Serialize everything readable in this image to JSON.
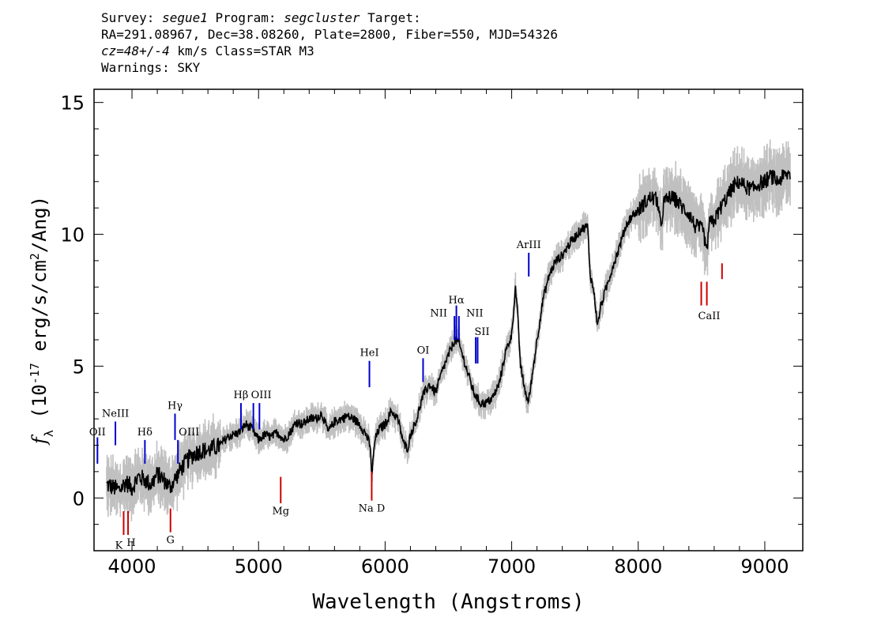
{
  "header": {
    "line1_a": "Survey: ",
    "survey": "segue1",
    "line1_b": " Program: ",
    "program": "segcluster",
    "line1_c": " Target:",
    "line2": "RA=291.08967, Dec=38.08260, Plate=2800, Fiber=550, MJD=54326",
    "cz": "cz=48+/-4",
    "line3_b": " km/s Class=STAR M3",
    "line4": "Warnings: SKY"
  },
  "chart_data": {
    "type": "line",
    "xlabel": "Wavelength (Angstroms)",
    "ylabel": "f_λ (10^-17 erg/s/cm^2/Ang)",
    "xlim": [
      3700,
      9300
    ],
    "ylim": [
      -2,
      15.5
    ],
    "x_ticks": [
      4000,
      5000,
      6000,
      7000,
      8000,
      9000
    ],
    "y_ticks": [
      0,
      5,
      10,
      15
    ],
    "flux_color": "#000000",
    "error_color": "#c0c0c0",
    "emission_color": "#0000cc",
    "absorption_color": "#cc0000",
    "flux": {
      "x": [
        3800,
        3850,
        3900,
        3950,
        4000,
        4050,
        4100,
        4150,
        4200,
        4250,
        4300,
        4350,
        4400,
        4450,
        4500,
        4550,
        4600,
        4650,
        4700,
        4750,
        4800,
        4850,
        4900,
        4950,
        5000,
        5050,
        5100,
        5150,
        5200,
        5250,
        5300,
        5350,
        5400,
        5450,
        5500,
        5550,
        5600,
        5650,
        5700,
        5750,
        5800,
        5850,
        5880,
        5895,
        5920,
        5950,
        6000,
        6050,
        6100,
        6150,
        6180,
        6200,
        6250,
        6300,
        6350,
        6400,
        6450,
        6500,
        6550,
        6580,
        6600,
        6650,
        6700,
        6750,
        6800,
        6850,
        6900,
        6950,
        7000,
        7030,
        7050,
        7070,
        7100,
        7130,
        7150,
        7200,
        7250,
        7300,
        7350,
        7400,
        7450,
        7500,
        7550,
        7600,
        7620,
        7650,
        7680,
        7700,
        7750,
        7800,
        7850,
        7900,
        7950,
        8000,
        8050,
        8100,
        8150,
        8180,
        8200,
        8250,
        8300,
        8350,
        8400,
        8450,
        8500,
        8520,
        8540,
        8560,
        8600,
        8650,
        8700,
        8750,
        8800,
        8850,
        8900,
        8950,
        9000,
        9050,
        9100,
        9150,
        9200
      ],
      "y": [
        0.5,
        0.4,
        0.3,
        0.6,
        0.4,
        0.8,
        0.7,
        0.5,
        0.9,
        0.7,
        0.4,
        0.8,
        1.2,
        1.5,
        1.7,
        1.8,
        1.8,
        1.9,
        2.0,
        2.3,
        2.4,
        2.5,
        2.8,
        2.6,
        2.2,
        2.4,
        2.3,
        2.5,
        2.2,
        2.5,
        2.9,
        2.8,
        3.0,
        3.0,
        3.2,
        2.5,
        2.9,
        3.0,
        3.1,
        3.0,
        2.8,
        2.4,
        2.0,
        0.9,
        2.2,
        2.6,
        2.8,
        3.3,
        3.0,
        2.0,
        1.9,
        2.4,
        3.0,
        3.9,
        4.3,
        4.0,
        4.8,
        5.4,
        6.0,
        5.9,
        5.6,
        4.8,
        4.0,
        3.6,
        3.6,
        3.8,
        4.3,
        5.5,
        6.2,
        8.0,
        6.7,
        5.0,
        4.2,
        3.6,
        4.2,
        6.0,
        7.6,
        8.5,
        9.0,
        9.2,
        9.6,
        9.9,
        10.2,
        10.3,
        8.5,
        7.8,
        6.5,
        7.2,
        8.0,
        8.8,
        9.5,
        10.3,
        10.7,
        10.9,
        11.2,
        11.4,
        11.3,
        10.2,
        11.2,
        11.4,
        11.3,
        11.0,
        10.8,
        10.3,
        10.2,
        10.0,
        9.2,
        10.4,
        10.5,
        11.0,
        11.4,
        11.8,
        12.0,
        11.8,
        11.7,
        11.9,
        12.0,
        12.2,
        12.0,
        12.2,
        12.3
      ]
    },
    "lines": [
      {
        "label": "OII",
        "x": 3727,
        "kind": "emission",
        "y0": 1.3,
        "y1": 2.3,
        "ty": 2.5
      },
      {
        "label": "NeIII",
        "x": 3869,
        "kind": "emission",
        "y0": 2.0,
        "y1": 2.9,
        "ty": 3.2
      },
      {
        "label": "Hδ",
        "x": 4102,
        "kind": "emission",
        "y0": 1.3,
        "y1": 2.2,
        "ty": 2.5
      },
      {
        "label": "Hγ",
        "x": 4340,
        "kind": "emission",
        "y0": 2.2,
        "y1": 3.2,
        "ty": 3.5
      },
      {
        "label": "OIII",
        "x": 4363,
        "kind": "emission",
        "y0": 1.3,
        "y1": 2.2,
        "ty": 2.5,
        "dx": 14
      },
      {
        "label": "Hβ",
        "x": 4861,
        "kind": "emission",
        "y0": 2.6,
        "y1": 3.6,
        "ty": 3.9
      },
      {
        "label": "OIII",
        "x": 4959,
        "kind": "emission",
        "y0": 2.6,
        "y1": 3.6,
        "ty": 3.9,
        "dx": 10
      },
      {
        "label": "",
        "x": 5007,
        "kind": "emission",
        "y0": 2.6,
        "y1": 3.6
      },
      {
        "label": "HeI",
        "x": 5876,
        "kind": "emission",
        "y0": 4.2,
        "y1": 5.2,
        "ty": 5.5
      },
      {
        "label": "OI",
        "x": 6300,
        "kind": "emission",
        "y0": 4.4,
        "y1": 5.3,
        "ty": 5.6
      },
      {
        "label": "NII",
        "x": 6548,
        "kind": "emission",
        "y0": 6.0,
        "y1": 6.9,
        "ty": 7.0,
        "dx": -20
      },
      {
        "label": "Hα",
        "x": 6563,
        "kind": "emission",
        "y0": 6.0,
        "y1": 7.3,
        "ty": 7.5
      },
      {
        "label": "NII",
        "x": 6583,
        "kind": "emission",
        "y0": 6.0,
        "y1": 6.9,
        "ty": 7.0,
        "dx": 20
      },
      {
        "label": "SII",
        "x": 6716,
        "kind": "emission",
        "y0": 5.1,
        "y1": 6.1,
        "ty": 6.3,
        "dx": 8
      },
      {
        "label": "",
        "x": 6731,
        "kind": "emission",
        "y0": 5.1,
        "y1": 6.1
      },
      {
        "label": "ArIII",
        "x": 7135,
        "kind": "emission",
        "y0": 8.4,
        "y1": 9.3,
        "ty": 9.6
      },
      {
        "label": "K",
        "x": 3934,
        "kind": "absorption",
        "y0": -0.5,
        "y1": -1.4,
        "ty": -1.8,
        "dx": -6
      },
      {
        "label": "H",
        "x": 3969,
        "kind": "absorption",
        "y0": -0.5,
        "y1": -1.4,
        "ty": -1.7,
        "dx": 4
      },
      {
        "label": "G",
        "x": 4304,
        "kind": "absorption",
        "y0": -0.4,
        "y1": -1.3,
        "ty": -1.6
      },
      {
        "label": "Mg",
        "x": 5175,
        "kind": "absorption",
        "y0": 0.8,
        "y1": -0.2,
        "ty": -0.5
      },
      {
        "label": "Na D",
        "x": 5894,
        "kind": "absorption",
        "y0": 1.0,
        "y1": -0.1,
        "ty": -0.4
      },
      {
        "label": "CaII",
        "x": 8498,
        "kind": "absorption",
        "y0": 8.2,
        "y1": 7.3,
        "ty": 6.9,
        "dx": 10
      },
      {
        "label": "",
        "x": 8542,
        "kind": "absorption",
        "y0": 8.2,
        "y1": 7.3
      },
      {
        "label": "",
        "x": 8662,
        "kind": "absorption",
        "y0": 8.9,
        "y1": 8.3
      }
    ]
  }
}
